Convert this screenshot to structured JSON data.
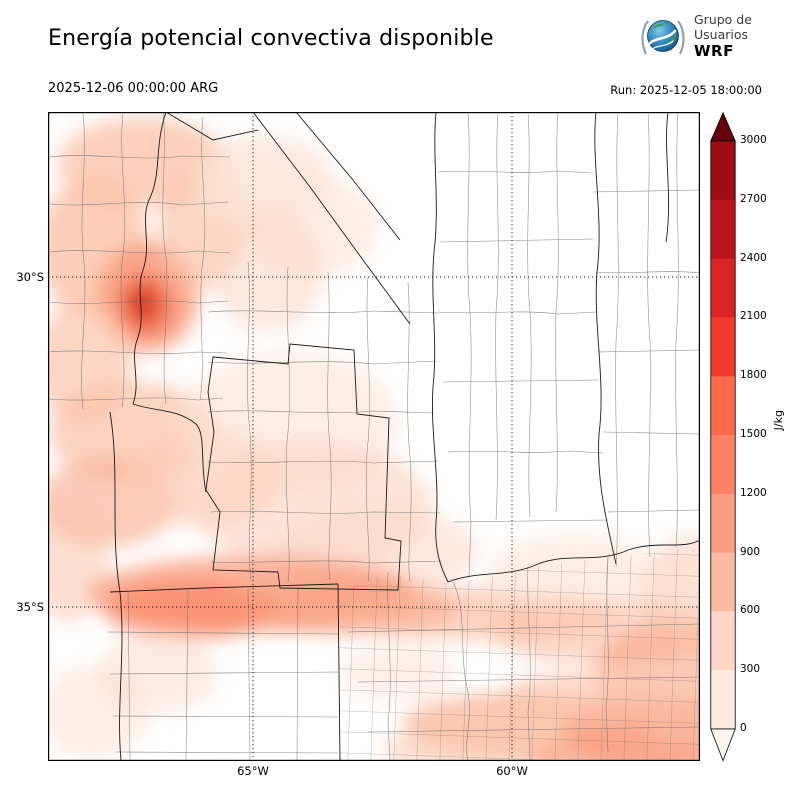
{
  "header": {
    "title": "Energía potencial convectiva disponible",
    "valid_time": "2025-12-06 00:00:00 ARG",
    "run_time": "Run: 2025-12-05 18:00:00",
    "logo": {
      "line1": "Grupo de",
      "line2": "Usuarios",
      "line3": "WRF"
    }
  },
  "map": {
    "lat_labels": [
      "30°S",
      "35°S"
    ],
    "lon_labels": [
      "65°W",
      "60°W"
    ]
  },
  "colorbar": {
    "units": "J/kg",
    "tick_labels": [
      "3000",
      "2700",
      "2400",
      "2100",
      "1800",
      "1500",
      "1200",
      "900",
      "600",
      "300",
      "0"
    ],
    "band_colors_top_to_bottom": [
      "#9e0d14",
      "#bc141a",
      "#d92523",
      "#ef3b2c",
      "#fb6a4a",
      "#fc8161",
      "#fc9e80",
      "#fcbba1",
      "#fdd7c6",
      "#fee9df"
    ],
    "over_color": "#67000d",
    "under_color": "#fff5f0"
  },
  "chart_data": {
    "type": "heatmap",
    "title": "Energía potencial convectiva disponible",
    "variable": "CAPE (convective available potential energy)",
    "units": "J/kg",
    "scale_ticks": [
      0,
      300,
      600,
      900,
      1200,
      1500,
      1800,
      2100,
      2400,
      2700,
      3000
    ],
    "lat_gridlines": [
      "30°S",
      "35°S"
    ],
    "lon_gridlines": [
      "65°W",
      "60°W"
    ],
    "notes": "Highest CAPE (~1200-1500 J/kg) northwest near 30°S and along a zonal band near 35°S; light values over southeast coastal area; near zero over center-north."
  }
}
